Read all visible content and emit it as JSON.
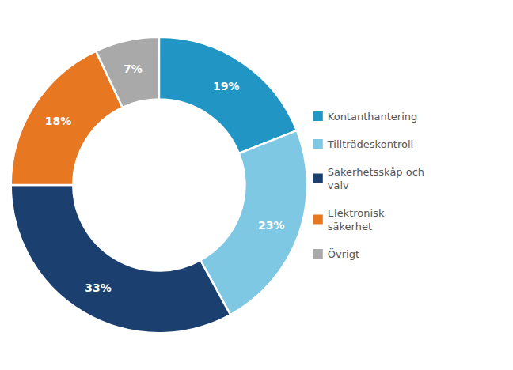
{
  "chart_data": {
    "type": "donut",
    "categories": [
      "Kontanthantering",
      "Tillträdeskontroll",
      "Säkerhetsskåp och\nvalv",
      "Elektronisk\nsäkerhet",
      "Övrigt"
    ],
    "values": [
      19,
      23,
      33,
      18,
      7
    ],
    "value_labels": [
      "19%",
      "23%",
      "33%",
      "18%",
      "7%"
    ],
    "colors": [
      "#2196C4",
      "#7EC8E3",
      "#1B3F6E",
      "#E87722",
      "#A9A9A9"
    ],
    "data_labels": true,
    "legend": "right"
  }
}
